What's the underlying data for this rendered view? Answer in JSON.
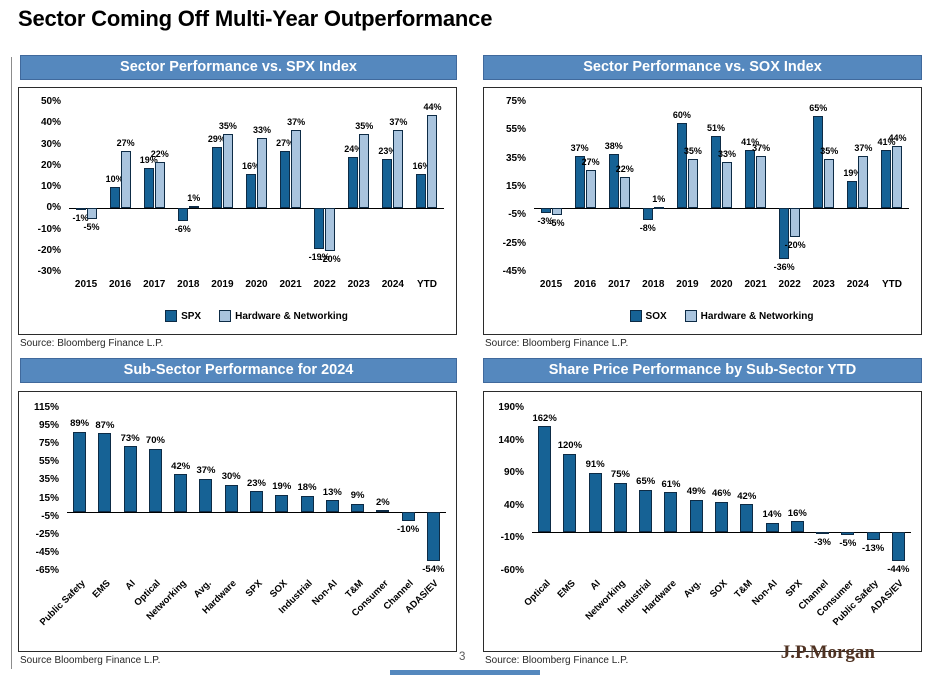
{
  "page": {
    "title": "Sector Coming Off Multi-Year Outperformance",
    "page_number": "3",
    "logo_text": "J.P.Morgan"
  },
  "colors": {
    "header_bg": "#5588BE",
    "header_text": "#FFFFFF",
    "dark": "#166295",
    "light": "#A9C4DE",
    "bar_border": "#0D2B45",
    "logo": "#4F3222"
  },
  "chart_data": [
    {
      "type": "bar",
      "title": "Sector Performance vs. SPX Index",
      "source": "Source: Bloomberg Finance L.P.",
      "categories": [
        "2015",
        "2016",
        "2017",
        "2018",
        "2019",
        "2020",
        "2021",
        "2022",
        "2023",
        "2024",
        "YTD"
      ],
      "series": [
        {
          "name": "SPX",
          "color_key": "dark",
          "values": [
            -1,
            10,
            19,
            -6,
            29,
            16,
            27,
            -19,
            24,
            23,
            16
          ]
        },
        {
          "name": "Hardware & Networking",
          "color_key": "light",
          "values": [
            -5,
            27,
            22,
            1,
            35,
            33,
            37,
            -20,
            35,
            37,
            44
          ]
        }
      ],
      "ylim": [
        -30,
        50
      ],
      "yticks": [
        50,
        40,
        30,
        20,
        10,
        0,
        -10,
        -20,
        -30
      ],
      "grid": false,
      "legend_position": "bottom"
    },
    {
      "type": "bar",
      "title": "Sector Performance vs. SOX Index",
      "source": "Source: Bloomberg Finance L.P.",
      "categories": [
        "2015",
        "2016",
        "2017",
        "2018",
        "2019",
        "2020",
        "2021",
        "2022",
        "2023",
        "2024",
        "YTD"
      ],
      "series": [
        {
          "name": "SOX",
          "color_key": "dark",
          "values": [
            -3,
            37,
            38,
            -8,
            60,
            51,
            41,
            -36,
            65,
            19,
            41
          ]
        },
        {
          "name": "Hardware & Networking",
          "color_key": "light",
          "values": [
            -5,
            27,
            22,
            1,
            35,
            33,
            37,
            -20,
            35,
            37,
            44
          ]
        }
      ],
      "ylim": [
        -45,
        75
      ],
      "yticks": [
        75,
        55,
        35,
        15,
        -5,
        -25,
        -45
      ],
      "grid": false,
      "legend_position": "bottom"
    },
    {
      "type": "bar",
      "title": "Sub-Sector Performance for 2024",
      "source": "Source Bloomberg Finance L.P.",
      "categories": [
        "Public Safety",
        "EMS",
        "AI",
        "Optical",
        "Networking",
        "Avg.",
        "Hardware",
        "SPX",
        "SOX",
        "Industrial",
        "Non-AI",
        "T&M",
        "Consumer",
        "Channel",
        "ADAS/EV"
      ],
      "series": [
        {
          "name": "2024",
          "color_key": "dark",
          "values": [
            89,
            87,
            73,
            70,
            42,
            37,
            30,
            23,
            19,
            18,
            13,
            9,
            2,
            -10,
            -54
          ]
        }
      ],
      "ylim": [
        -65,
        115
      ],
      "yticks": [
        115,
        95,
        75,
        55,
        35,
        15,
        -5,
        -25,
        -45,
        -65
      ],
      "grid": false,
      "legend_position": "none"
    },
    {
      "type": "bar",
      "title": "Share Price Performance by Sub-Sector YTD",
      "source": "Source: Bloomberg Finance L.P.",
      "categories": [
        "Optical",
        "EMS",
        "AI",
        "Networking",
        "Industrial",
        "Hardware",
        "Avg.",
        "SOX",
        "T&M",
        "Non-AI",
        "SPX",
        "Channel",
        "Consumer",
        "Public Safety",
        "ADAS/EV"
      ],
      "series": [
        {
          "name": "YTD",
          "color_key": "dark",
          "values": [
            162,
            120,
            91,
            75,
            65,
            61,
            49,
            46,
            42,
            14,
            16,
            -3,
            -5,
            -13,
            -44
          ]
        }
      ],
      "ylim": [
        -60,
        190
      ],
      "yticks": [
        190,
        140,
        90,
        40,
        -10,
        -60
      ],
      "grid": false,
      "legend_position": "none"
    }
  ]
}
